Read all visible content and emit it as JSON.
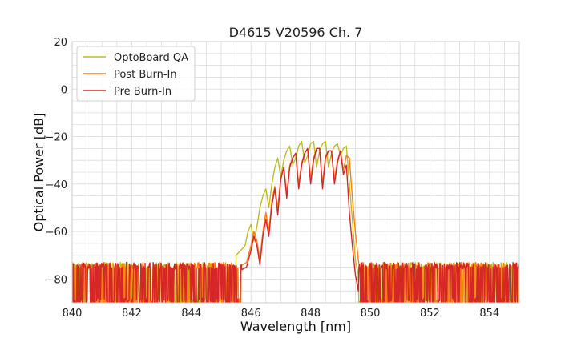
{
  "chart_data": {
    "type": "line",
    "title": "D4615 V20596 Ch. 7",
    "xlabel": "Wavelength [nm]",
    "ylabel": "Optical Power [dB]",
    "xlim": [
      840,
      855
    ],
    "ylim": [
      -90,
      20
    ],
    "xticks": [
      840,
      842,
      844,
      846,
      848,
      850,
      852,
      854
    ],
    "yticks": [
      20,
      0,
      -20,
      -40,
      -60,
      -80
    ],
    "grid": true,
    "legend_position": "top-left",
    "noise_floor_db": -80,
    "series": [
      {
        "name": "OptoBoard QA",
        "color": "#bcbd22",
        "x": [
          845.5,
          845.65,
          845.8,
          845.9,
          846.0,
          846.1,
          846.2,
          846.3,
          846.4,
          846.5,
          846.6,
          846.7,
          846.8,
          846.9,
          847.0,
          847.1,
          847.2,
          847.3,
          847.4,
          847.5,
          847.6,
          847.7,
          847.8,
          847.9,
          848.0,
          848.1,
          848.2,
          848.3,
          848.4,
          848.5,
          848.6,
          848.7,
          848.8,
          848.9,
          849.0,
          849.1,
          849.2,
          849.3,
          849.4,
          849.5,
          849.6
        ],
        "y": [
          -70,
          -68,
          -66,
          -60,
          -57,
          -64,
          -58,
          -50,
          -45,
          -42,
          -50,
          -40,
          -33,
          -29,
          -37,
          -30,
          -26,
          -24,
          -32,
          -29,
          -24,
          -22,
          -31,
          -28,
          -23,
          -22,
          -33,
          -26,
          -23,
          -22,
          -33,
          -27,
          -24,
          -23,
          -28,
          -25,
          -24,
          -40,
          -55,
          -72,
          -78
        ]
      },
      {
        "name": "Post Burn-In",
        "color": "#ff7f0e",
        "x": [
          845.7,
          845.85,
          846.0,
          846.1,
          846.2,
          846.3,
          846.4,
          846.5,
          846.6,
          846.7,
          846.8,
          846.9,
          847.0,
          847.1,
          847.2,
          847.3,
          847.4,
          847.5,
          847.6,
          847.7,
          847.8,
          847.9,
          848.0,
          848.1,
          848.2,
          848.3,
          848.4,
          848.5,
          848.6,
          848.7,
          848.8,
          848.9,
          849.0,
          849.1,
          849.2,
          849.3,
          849.4,
          849.5,
          849.6,
          849.7
        ],
        "y": [
          -74,
          -73,
          -66,
          -60,
          -64,
          -72,
          -60,
          -52,
          -60,
          -47,
          -41,
          -50,
          -37,
          -33,
          -44,
          -32,
          -29,
          -27,
          -40,
          -31,
          -27,
          -25,
          -38,
          -29,
          -25,
          -25,
          -40,
          -28,
          -26,
          -26,
          -38,
          -30,
          -26,
          -34,
          -28,
          -29,
          -46,
          -60,
          -72,
          -80
        ]
      },
      {
        "name": "Pre Burn-In",
        "color": "#d62728",
        "x": [
          845.7,
          845.85,
          846.0,
          846.1,
          846.2,
          846.3,
          846.4,
          846.5,
          846.6,
          846.7,
          846.8,
          846.9,
          847.0,
          847.1,
          847.2,
          847.3,
          847.4,
          847.5,
          847.6,
          847.7,
          847.8,
          847.9,
          848.0,
          848.1,
          848.2,
          848.3,
          848.4,
          848.5,
          848.6,
          848.7,
          848.8,
          848.9,
          849.0,
          849.1,
          849.2,
          849.3,
          849.4,
          849.5,
          849.6
        ],
        "y": [
          -76,
          -75,
          -68,
          -62,
          -66,
          -74,
          -62,
          -55,
          -62,
          -49,
          -42,
          -53,
          -38,
          -33,
          -46,
          -33,
          -29,
          -27,
          -42,
          -32,
          -27,
          -25,
          -40,
          -30,
          -25,
          -25,
          -42,
          -29,
          -26,
          -26,
          -40,
          -31,
          -26,
          -36,
          -32,
          -52,
          -66,
          -78,
          -85
        ]
      }
    ]
  }
}
